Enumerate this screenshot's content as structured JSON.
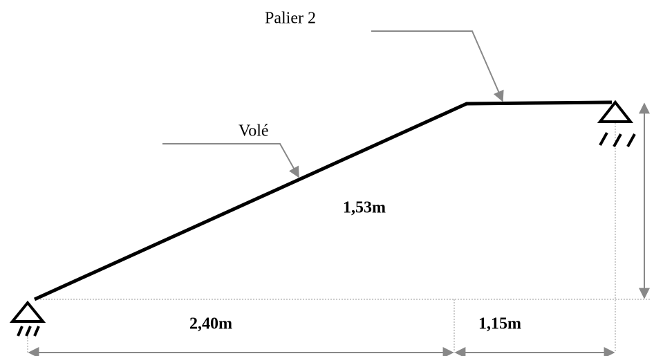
{
  "labels": {
    "landing": "Palier 2",
    "flight": "Volé"
  },
  "dimensions": {
    "height": "1,53m",
    "flight_length": "2,40m",
    "landing_length": "1,15m"
  }
}
